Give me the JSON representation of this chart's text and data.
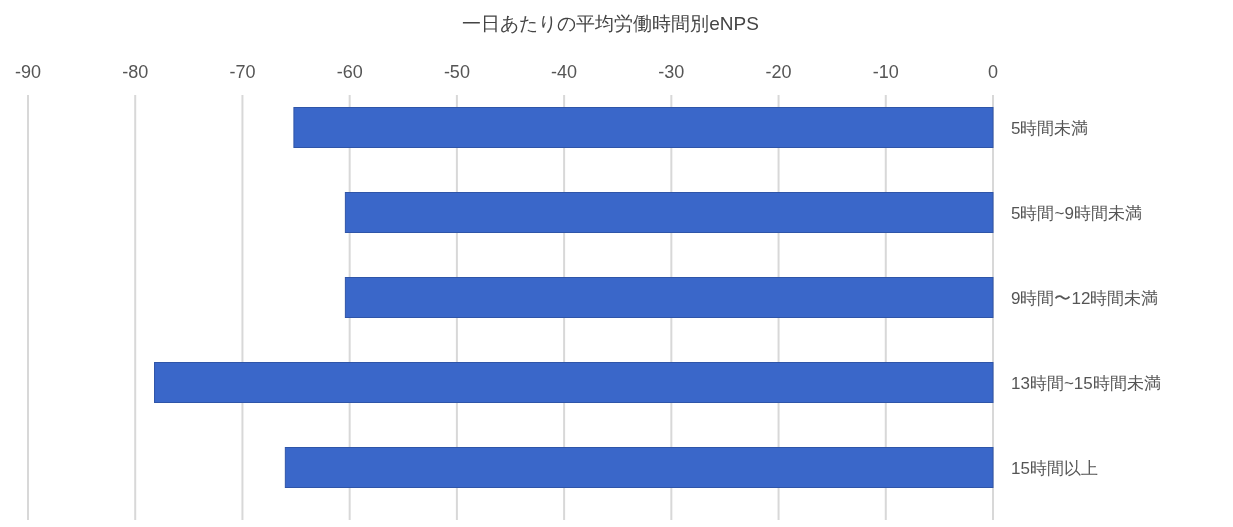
{
  "chart_data": {
    "type": "bar",
    "orientation": "horizontal",
    "title": "一日あたりの平均労働時間別eNPS",
    "categories": [
      "5時間未満",
      "5時間~9時間未満",
      "9時間〜12時間未満",
      "13時間~15時間未満",
      "15時間以上"
    ],
    "values": [
      -65.2,
      -60.4,
      -60.4,
      -78.2,
      -66.0
    ],
    "color": "#3a67c9",
    "xlim": [
      -90,
      0
    ],
    "xticks": [
      -90,
      -80,
      -70,
      -60,
      -50,
      -40,
      -30,
      -20,
      -10,
      0
    ],
    "grid": "x"
  }
}
